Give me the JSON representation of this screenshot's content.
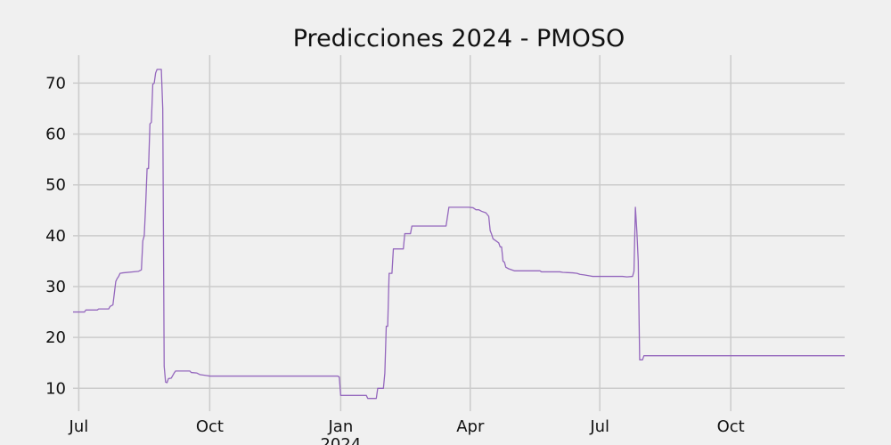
{
  "chart_data": {
    "type": "line",
    "title": "Predicciones 2024 - PMOSO",
    "xlabel": "",
    "ylabel": "",
    "grid": true,
    "x_range": [
      "2023-06-27",
      "2024-12-20"
    ],
    "ylim": [
      5.5,
      75.5
    ],
    "x_ticks": [
      {
        "date": "2023-07-01",
        "label": "Jul"
      },
      {
        "date": "2023-10-01",
        "label": "Oct"
      },
      {
        "date": "2024-01-01",
        "label": "Jan",
        "sublabel": "2024"
      },
      {
        "date": "2024-04-01",
        "label": "Apr"
      },
      {
        "date": "2024-07-01",
        "label": "Jul"
      },
      {
        "date": "2024-10-01",
        "label": "Oct"
      }
    ],
    "y_ticks": [
      10,
      20,
      30,
      40,
      50,
      60,
      70
    ],
    "series": [
      {
        "color": "#9467bd",
        "points": [
          [
            "2023-06-27",
            25.0
          ],
          [
            "2023-07-05",
            25.0
          ],
          [
            "2023-07-06",
            25.4
          ],
          [
            "2023-07-14",
            25.4
          ],
          [
            "2023-07-15",
            25.6
          ],
          [
            "2023-07-22",
            25.6
          ],
          [
            "2023-07-23",
            26.1
          ],
          [
            "2023-07-25",
            26.4
          ],
          [
            "2023-07-27",
            31.0
          ],
          [
            "2023-07-28",
            31.6
          ],
          [
            "2023-07-29",
            32.0
          ],
          [
            "2023-07-30",
            32.6
          ],
          [
            "2023-08-01",
            32.7
          ],
          [
            "2023-08-12",
            33.0
          ],
          [
            "2023-08-14",
            33.3
          ],
          [
            "2023-08-15",
            39.0
          ],
          [
            "2023-08-16",
            40.0
          ],
          [
            "2023-08-17",
            46.0
          ],
          [
            "2023-08-18",
            53.2
          ],
          [
            "2023-08-19",
            53.2
          ],
          [
            "2023-08-20",
            62.0
          ],
          [
            "2023-08-21",
            62.3
          ],
          [
            "2023-08-22",
            69.8
          ],
          [
            "2023-08-23",
            70.0
          ],
          [
            "2023-08-24",
            72.0
          ],
          [
            "2023-08-25",
            72.7
          ],
          [
            "2023-08-28",
            72.7
          ],
          [
            "2023-08-29",
            65.0
          ],
          [
            "2023-08-30",
            14.3
          ],
          [
            "2023-08-31",
            11.2
          ],
          [
            "2023-09-01",
            11.1
          ],
          [
            "2023-09-02",
            11.9
          ],
          [
            "2023-09-04",
            12.0
          ],
          [
            "2023-09-06",
            13.0
          ],
          [
            "2023-09-07",
            13.4
          ],
          [
            "2023-09-17",
            13.4
          ],
          [
            "2023-09-18",
            13.1
          ],
          [
            "2023-09-22",
            13.0
          ],
          [
            "2023-09-24",
            12.7
          ],
          [
            "2023-09-29",
            12.5
          ],
          [
            "2023-10-01",
            12.4
          ],
          [
            "2023-12-30",
            12.4
          ],
          [
            "2023-12-31",
            12.2
          ],
          [
            "2024-01-01",
            8.6
          ],
          [
            "2024-01-19",
            8.6
          ],
          [
            "2024-01-20",
            8.0
          ],
          [
            "2024-01-26",
            8.0
          ],
          [
            "2024-01-27",
            10.0
          ],
          [
            "2024-01-31",
            10.0
          ],
          [
            "2024-02-01",
            13.0
          ],
          [
            "2024-02-02",
            22.2
          ],
          [
            "2024-02-03",
            22.2
          ],
          [
            "2024-02-04",
            32.6
          ],
          [
            "2024-02-06",
            32.6
          ],
          [
            "2024-02-07",
            37.4
          ],
          [
            "2024-02-14",
            37.4
          ],
          [
            "2024-02-15",
            40.4
          ],
          [
            "2024-02-19",
            40.4
          ],
          [
            "2024-02-20",
            41.9
          ],
          [
            "2024-03-15",
            41.9
          ],
          [
            "2024-03-17",
            45.6
          ],
          [
            "2024-03-31",
            45.6
          ],
          [
            "2024-04-03",
            45.5
          ],
          [
            "2024-04-05",
            45.1
          ],
          [
            "2024-04-07",
            45.1
          ],
          [
            "2024-04-09",
            44.8
          ],
          [
            "2024-04-12",
            44.5
          ],
          [
            "2024-04-14",
            43.8
          ],
          [
            "2024-04-15",
            41.0
          ],
          [
            "2024-04-16",
            40.3
          ],
          [
            "2024-04-17",
            39.4
          ],
          [
            "2024-04-19",
            39.0
          ],
          [
            "2024-04-21",
            38.6
          ],
          [
            "2024-04-22",
            37.8
          ],
          [
            "2024-04-23",
            37.8
          ],
          [
            "2024-04-24",
            35.0
          ],
          [
            "2024-04-25",
            34.8
          ],
          [
            "2024-04-26",
            33.8
          ],
          [
            "2024-04-28",
            33.5
          ],
          [
            "2024-04-30",
            33.3
          ],
          [
            "2024-05-02",
            33.1
          ],
          [
            "2024-05-20",
            33.1
          ],
          [
            "2024-05-21",
            32.9
          ],
          [
            "2024-06-03",
            32.9
          ],
          [
            "2024-06-05",
            32.8
          ],
          [
            "2024-06-12",
            32.7
          ],
          [
            "2024-06-15",
            32.6
          ],
          [
            "2024-06-17",
            32.4
          ],
          [
            "2024-06-20",
            32.3
          ],
          [
            "2024-06-24",
            32.1
          ],
          [
            "2024-06-26",
            32.0
          ],
          [
            "2024-07-17",
            32.0
          ],
          [
            "2024-07-20",
            31.9
          ],
          [
            "2024-07-24",
            32.0
          ],
          [
            "2024-07-25",
            33.0
          ],
          [
            "2024-07-26",
            45.6
          ],
          [
            "2024-07-27",
            41.0
          ],
          [
            "2024-07-28",
            35.0
          ],
          [
            "2024-07-29",
            15.6
          ],
          [
            "2024-07-31",
            15.6
          ],
          [
            "2024-08-01",
            16.4
          ],
          [
            "2024-12-20",
            16.4
          ]
        ]
      }
    ]
  }
}
